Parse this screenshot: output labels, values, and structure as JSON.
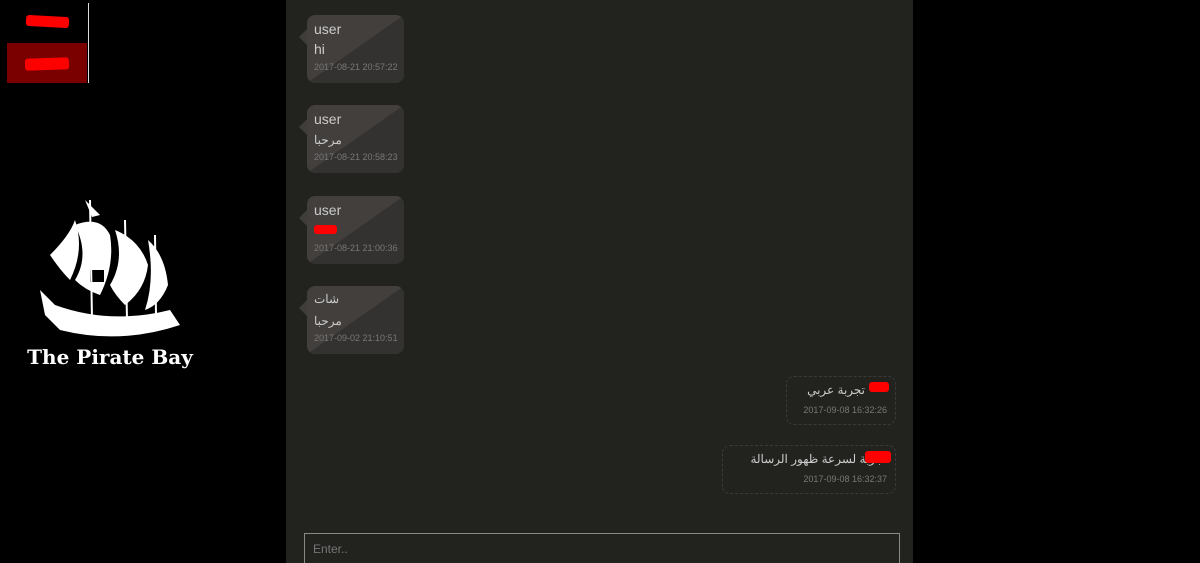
{
  "nav": {
    "items": [
      "",
      ""
    ],
    "active_index": 1
  },
  "logo": {
    "text": "The Pirate Bay"
  },
  "chat": {
    "messages": [
      {
        "direction": "in",
        "sender": "user",
        "text": "hi",
        "time": "2017-08-21 20:57:22"
      },
      {
        "direction": "in",
        "sender": "user",
        "text": "مرحبا",
        "time": "2017-08-21 20:58:23"
      },
      {
        "direction": "in",
        "sender": "user",
        "text": "",
        "time": "2017-08-21 21:00:36",
        "redacted_text": true
      },
      {
        "direction": "in",
        "sender": "شات",
        "text": "مرحبا",
        "time": "2017-09-02 21:10:51"
      },
      {
        "direction": "out",
        "sender": "",
        "text": "تجربة عربي",
        "time": "2017-09-08 16:32:26"
      },
      {
        "direction": "out",
        "sender": "",
        "text": "تجربة لسرعة ظهور الرسالة",
        "time": "2017-09-08 16:32:37"
      }
    ],
    "input": {
      "placeholder": "Enter..",
      "value": ""
    }
  },
  "colors": {
    "panel": "#22221f",
    "active_menu": "#7a0000",
    "redaction": "#ff0000"
  }
}
